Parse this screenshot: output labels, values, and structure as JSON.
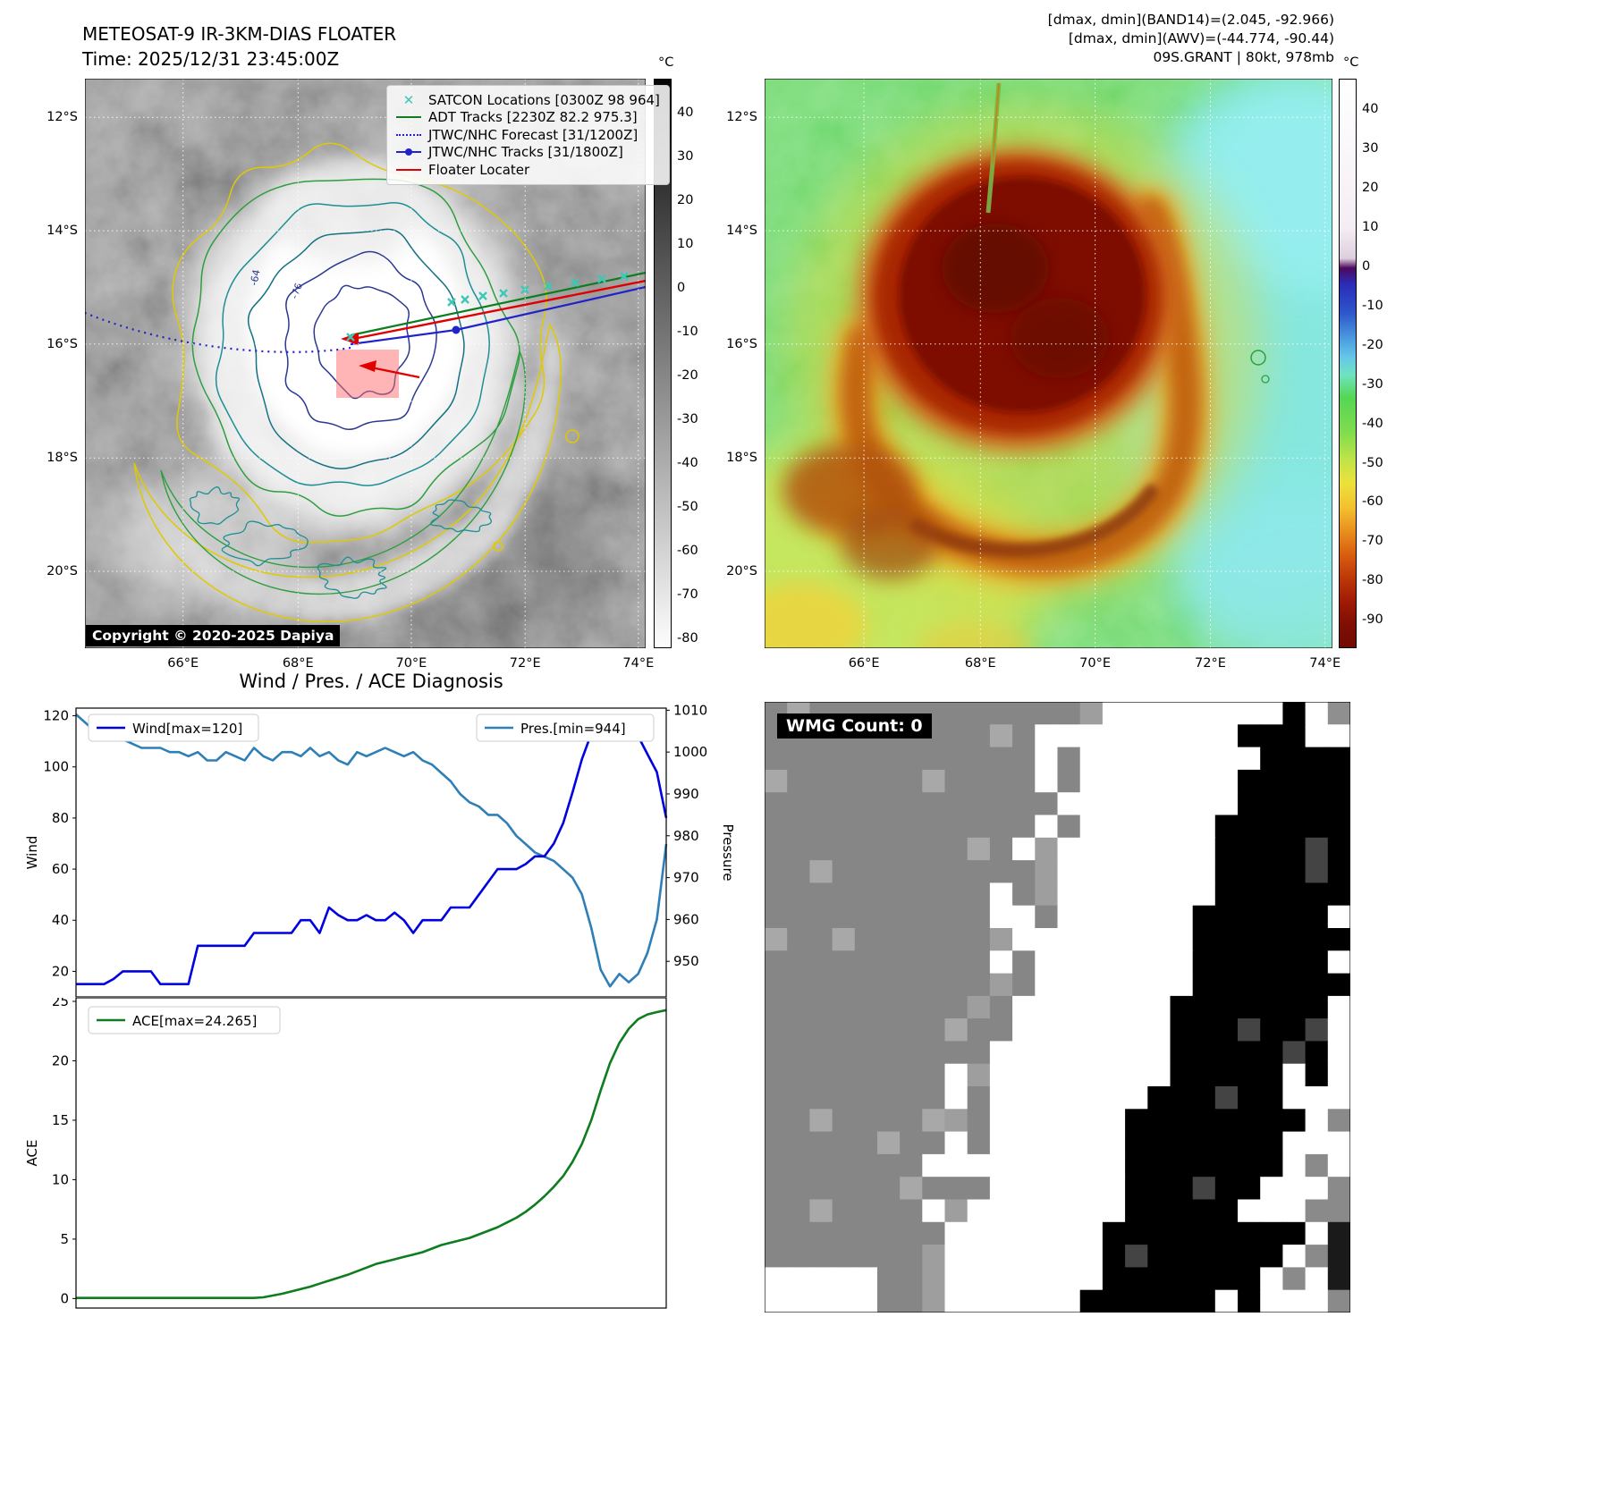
{
  "header_left": {
    "title": "METEOSAT-9 IR-3KM-DIAS FLOATER",
    "time": "Time: 2025/12/31 23:45:00Z"
  },
  "header_right": {
    "line1": "[dmax, dmin](BAND14)=(2.045, -92.966)",
    "line2": "[dmax, dmin](AWV)=(-44.774, -90.44)",
    "line3": "09S.GRANT | 80kt, 978mb"
  },
  "ir_map": {
    "unit": "°C",
    "lat_labels": [
      "12°S",
      "14°S",
      "16°S",
      "18°S",
      "20°S"
    ],
    "lon_labels": [
      "66°E",
      "68°E",
      "70°E",
      "72°E",
      "74°E"
    ],
    "colorbar_ticks": [
      40,
      30,
      20,
      10,
      0,
      -10,
      -20,
      -30,
      -40,
      -50,
      -60,
      -70,
      -80
    ],
    "legend": [
      {
        "label": "SATCON Locations [0300Z 98 964]",
        "marker": "x",
        "color": "#3cc8b4"
      },
      {
        "label": "ADT Tracks [2230Z 82.2 975.3]",
        "marker": "line",
        "color": "#0d7d1f"
      },
      {
        "label": "JTWC/NHC Forecast [31/1200Z]",
        "marker": "dotted",
        "color": "#2222cc"
      },
      {
        "label": "JTWC/NHC Tracks [31/1800Z]",
        "marker": "line-dot",
        "color": "#2222cc"
      },
      {
        "label": "Floater Locater",
        "marker": "line",
        "color": "#e00000"
      }
    ],
    "contour_labels": [
      "-64",
      "-76"
    ],
    "copyright": "Copyright © 2020-2025 Dapiya"
  },
  "color_map": {
    "unit": "°C",
    "lat_labels": [
      "12°S",
      "14°S",
      "16°S",
      "18°S",
      "20°S"
    ],
    "lon_labels": [
      "66°E",
      "68°E",
      "70°E",
      "72°E",
      "74°E"
    ],
    "colorbar_ticks": [
      40,
      30,
      20,
      10,
      0,
      -10,
      -20,
      -30,
      -40,
      -50,
      -60,
      -70,
      -80,
      -90
    ]
  },
  "diagnosis": {
    "title": "Wind / Pres. / ACE Diagnosis",
    "wind_ylabel": "Wind",
    "pres_ylabel": "Pressure",
    "ace_ylabel": "ACE",
    "wind_legend": "Wind[max=120]",
    "pres_legend": "Pres.[min=944]",
    "ace_legend": "ACE[max=24.265]"
  },
  "chart_data": [
    {
      "type": "line",
      "title": "Wind / Pres. / ACE Diagnosis",
      "legend_position": "upper left / upper right",
      "series": [
        {
          "name": "Wind",
          "legend": "Wind[max=120]",
          "color": "#0000e0",
          "axis": "left",
          "ylim": [
            10,
            123
          ],
          "ticks": [
            20,
            40,
            60,
            80,
            100,
            120
          ],
          "values": [
            15,
            15,
            15,
            15,
            17,
            20,
            20,
            20,
            20,
            15,
            15,
            15,
            15,
            30,
            30,
            30,
            30,
            30,
            30,
            35,
            35,
            35,
            35,
            35,
            40,
            40,
            35,
            45,
            42,
            40,
            40,
            42,
            40,
            40,
            43,
            40,
            35,
            40,
            40,
            40,
            45,
            45,
            45,
            50,
            55,
            60,
            60,
            60,
            62,
            65,
            65,
            70,
            78,
            90,
            103,
            113,
            119,
            120,
            120,
            117,
            112,
            105,
            98,
            80
          ]
        },
        {
          "name": "Pres.",
          "legend": "Pres.[min=944]",
          "color": "#2e7fb8",
          "axis": "right",
          "ylim": [
            941.5,
            1010.5
          ],
          "ticks": [
            950,
            960,
            970,
            980,
            990,
            1000,
            1010
          ],
          "values": [
            1009,
            1007,
            1005,
            1004,
            1004,
            1003,
            1002,
            1001,
            1001,
            1001,
            1000,
            1000,
            999,
            1000,
            998,
            998,
            1000,
            999,
            998,
            1001,
            999,
            998,
            1000,
            1000,
            999,
            1001,
            999,
            1000,
            998,
            997,
            1000,
            999,
            1000,
            1001,
            1000,
            999,
            1000,
            998,
            997,
            995,
            993,
            990,
            988,
            987,
            985,
            985,
            983,
            980,
            978,
            976,
            975,
            974,
            972,
            970,
            966,
            958,
            948,
            944,
            947,
            945,
            947,
            952,
            960,
            978
          ]
        }
      ]
    },
    {
      "type": "line",
      "title": "ACE",
      "series": [
        {
          "name": "ACE",
          "legend": "ACE[max=24.265]",
          "color": "#0d7d1f",
          "axis": "left",
          "ylim": [
            -0.8,
            25.3
          ],
          "ticks": [
            0,
            5,
            10,
            15,
            20,
            25
          ],
          "values": [
            0.05,
            0.05,
            0.05,
            0.05,
            0.05,
            0.05,
            0.05,
            0.05,
            0.05,
            0.05,
            0.05,
            0.05,
            0.05,
            0.05,
            0.05,
            0.05,
            0.05,
            0.05,
            0.05,
            0.05,
            0.1,
            0.25,
            0.4,
            0.6,
            0.8,
            1.0,
            1.25,
            1.5,
            1.75,
            2.0,
            2.3,
            2.6,
            2.9,
            3.1,
            3.3,
            3.5,
            3.7,
            3.9,
            4.2,
            4.5,
            4.7,
            4.9,
            5.1,
            5.4,
            5.7,
            6.0,
            6.4,
            6.8,
            7.3,
            7.9,
            8.6,
            9.4,
            10.3,
            11.5,
            13.0,
            15.0,
            17.5,
            19.8,
            21.5,
            22.7,
            23.5,
            23.9,
            24.1,
            24.265
          ]
        }
      ]
    }
  ],
  "wmg": {
    "label": "WMG Count: 0"
  }
}
